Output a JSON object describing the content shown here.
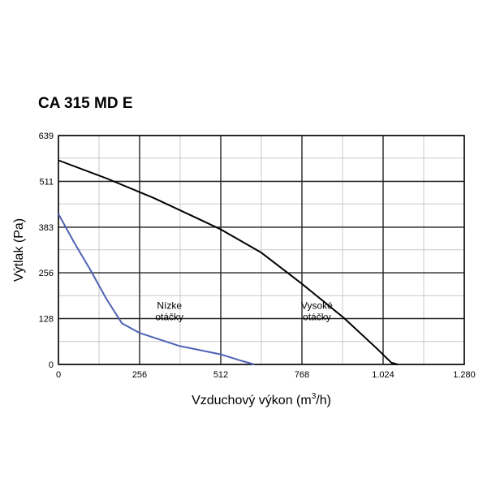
{
  "chart_data": {
    "type": "line",
    "title": "CA 315 MD E",
    "xlabel_main": "Vzduchový výkon (m",
    "xlabel_sup": "3",
    "xlabel_end": "/h)",
    "ylabel": "Výtlak (Pa)",
    "xlim": [
      0,
      1280
    ],
    "ylim": [
      0,
      639
    ],
    "x_ticks": [
      0,
      256,
      512,
      768,
      1024,
      1280
    ],
    "x_tick_labels": [
      "0",
      "256",
      "512",
      "768",
      "1.024",
      "1.280"
    ],
    "y_ticks": [
      0,
      128,
      256,
      383,
      511,
      639
    ],
    "y_tick_labels": [
      "0",
      "128",
      "256",
      "383",
      "511",
      "639"
    ],
    "x_minor_step": 128,
    "y_minor_step": 64,
    "grid": true,
    "series": [
      {
        "name": "Nízke otáčky",
        "color": "#4f62b5",
        "points": [
          [
            0,
            420
          ],
          [
            50,
            340
          ],
          [
            100,
            265
          ],
          [
            150,
            185
          ],
          [
            200,
            115
          ],
          [
            256,
            88
          ],
          [
            380,
            52
          ],
          [
            512,
            28
          ],
          [
            570,
            12
          ],
          [
            618,
            0
          ]
        ]
      },
      {
        "name": "Vysoké otáčky",
        "color": "#000000",
        "points": [
          [
            0,
            570
          ],
          [
            150,
            520
          ],
          [
            300,
            465
          ],
          [
            450,
            403
          ],
          [
            512,
            377
          ],
          [
            640,
            312
          ],
          [
            768,
            225
          ],
          [
            900,
            130
          ],
          [
            1000,
            48
          ],
          [
            1050,
            5
          ],
          [
            1070,
            0
          ]
        ]
      }
    ],
    "annotations": [
      {
        "lines": [
          "Nízke",
          "otáčky"
        ],
        "x": 350,
        "y": 155
      },
      {
        "lines": [
          "Vysoké",
          "otáčky"
        ],
        "x": 815,
        "y": 155
      }
    ]
  }
}
